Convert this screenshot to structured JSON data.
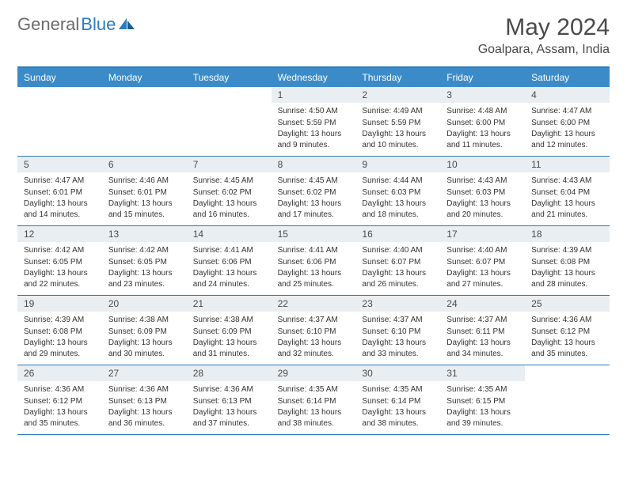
{
  "logo": {
    "part1": "General",
    "part2": "Blue"
  },
  "title": "May 2024",
  "location": "Goalpara, Assam, India",
  "colors": {
    "header_bg": "#3b8bc9",
    "border": "#2b7bbf",
    "daynum_bg": "#e9eef2",
    "text_dark": "#4a4a4a",
    "text_body": "#333333"
  },
  "weekdays": [
    "Sunday",
    "Monday",
    "Tuesday",
    "Wednesday",
    "Thursday",
    "Friday",
    "Saturday"
  ],
  "weeks": [
    [
      null,
      null,
      null,
      {
        "day": 1,
        "sunrise": "4:50 AM",
        "sunset": "5:59 PM",
        "daylight": "13 hours and 9 minutes."
      },
      {
        "day": 2,
        "sunrise": "4:49 AM",
        "sunset": "5:59 PM",
        "daylight": "13 hours and 10 minutes."
      },
      {
        "day": 3,
        "sunrise": "4:48 AM",
        "sunset": "6:00 PM",
        "daylight": "13 hours and 11 minutes."
      },
      {
        "day": 4,
        "sunrise": "4:47 AM",
        "sunset": "6:00 PM",
        "daylight": "13 hours and 12 minutes."
      }
    ],
    [
      {
        "day": 5,
        "sunrise": "4:47 AM",
        "sunset": "6:01 PM",
        "daylight": "13 hours and 14 minutes."
      },
      {
        "day": 6,
        "sunrise": "4:46 AM",
        "sunset": "6:01 PM",
        "daylight": "13 hours and 15 minutes."
      },
      {
        "day": 7,
        "sunrise": "4:45 AM",
        "sunset": "6:02 PM",
        "daylight": "13 hours and 16 minutes."
      },
      {
        "day": 8,
        "sunrise": "4:45 AM",
        "sunset": "6:02 PM",
        "daylight": "13 hours and 17 minutes."
      },
      {
        "day": 9,
        "sunrise": "4:44 AM",
        "sunset": "6:03 PM",
        "daylight": "13 hours and 18 minutes."
      },
      {
        "day": 10,
        "sunrise": "4:43 AM",
        "sunset": "6:03 PM",
        "daylight": "13 hours and 20 minutes."
      },
      {
        "day": 11,
        "sunrise": "4:43 AM",
        "sunset": "6:04 PM",
        "daylight": "13 hours and 21 minutes."
      }
    ],
    [
      {
        "day": 12,
        "sunrise": "4:42 AM",
        "sunset": "6:05 PM",
        "daylight": "13 hours and 22 minutes."
      },
      {
        "day": 13,
        "sunrise": "4:42 AM",
        "sunset": "6:05 PM",
        "daylight": "13 hours and 23 minutes."
      },
      {
        "day": 14,
        "sunrise": "4:41 AM",
        "sunset": "6:06 PM",
        "daylight": "13 hours and 24 minutes."
      },
      {
        "day": 15,
        "sunrise": "4:41 AM",
        "sunset": "6:06 PM",
        "daylight": "13 hours and 25 minutes."
      },
      {
        "day": 16,
        "sunrise": "4:40 AM",
        "sunset": "6:07 PM",
        "daylight": "13 hours and 26 minutes."
      },
      {
        "day": 17,
        "sunrise": "4:40 AM",
        "sunset": "6:07 PM",
        "daylight": "13 hours and 27 minutes."
      },
      {
        "day": 18,
        "sunrise": "4:39 AM",
        "sunset": "6:08 PM",
        "daylight": "13 hours and 28 minutes."
      }
    ],
    [
      {
        "day": 19,
        "sunrise": "4:39 AM",
        "sunset": "6:08 PM",
        "daylight": "13 hours and 29 minutes."
      },
      {
        "day": 20,
        "sunrise": "4:38 AM",
        "sunset": "6:09 PM",
        "daylight": "13 hours and 30 minutes."
      },
      {
        "day": 21,
        "sunrise": "4:38 AM",
        "sunset": "6:09 PM",
        "daylight": "13 hours and 31 minutes."
      },
      {
        "day": 22,
        "sunrise": "4:37 AM",
        "sunset": "6:10 PM",
        "daylight": "13 hours and 32 minutes."
      },
      {
        "day": 23,
        "sunrise": "4:37 AM",
        "sunset": "6:10 PM",
        "daylight": "13 hours and 33 minutes."
      },
      {
        "day": 24,
        "sunrise": "4:37 AM",
        "sunset": "6:11 PM",
        "daylight": "13 hours and 34 minutes."
      },
      {
        "day": 25,
        "sunrise": "4:36 AM",
        "sunset": "6:12 PM",
        "daylight": "13 hours and 35 minutes."
      }
    ],
    [
      {
        "day": 26,
        "sunrise": "4:36 AM",
        "sunset": "6:12 PM",
        "daylight": "13 hours and 35 minutes."
      },
      {
        "day": 27,
        "sunrise": "4:36 AM",
        "sunset": "6:13 PM",
        "daylight": "13 hours and 36 minutes."
      },
      {
        "day": 28,
        "sunrise": "4:36 AM",
        "sunset": "6:13 PM",
        "daylight": "13 hours and 37 minutes."
      },
      {
        "day": 29,
        "sunrise": "4:35 AM",
        "sunset": "6:14 PM",
        "daylight": "13 hours and 38 minutes."
      },
      {
        "day": 30,
        "sunrise": "4:35 AM",
        "sunset": "6:14 PM",
        "daylight": "13 hours and 38 minutes."
      },
      {
        "day": 31,
        "sunrise": "4:35 AM",
        "sunset": "6:15 PM",
        "daylight": "13 hours and 39 minutes."
      },
      null
    ]
  ]
}
